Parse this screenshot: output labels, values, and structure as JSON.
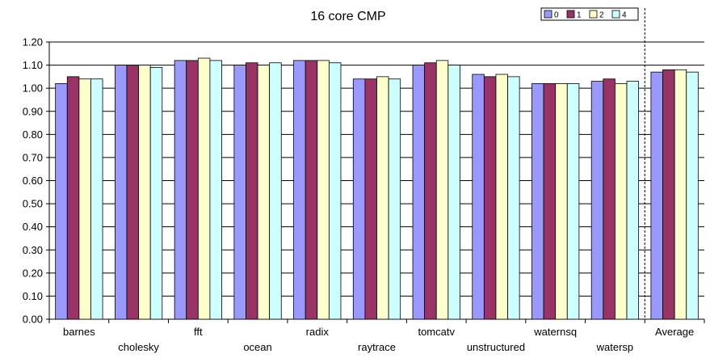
{
  "chart_data": {
    "type": "bar",
    "title": "16 core CMP",
    "xlabel": "",
    "ylabel": "",
    "ylim": [
      0,
      1.2
    ],
    "ytick_labels": [
      "0.00",
      "0.10",
      "0.20",
      "0.30",
      "0.40",
      "0.50",
      "0.60",
      "0.70",
      "0.80",
      "0.90",
      "1.00",
      "1.10",
      "1.20"
    ],
    "categories": [
      "barnes",
      "cholesky",
      "fft",
      "ocean",
      "radix",
      "raytrace",
      "tomcatv",
      "unstructured",
      "waternsq",
      "watersp",
      "Average"
    ],
    "series": [
      {
        "name": "0",
        "color": "#9999ff",
        "values": [
          1.02,
          1.1,
          1.12,
          1.1,
          1.12,
          1.04,
          1.1,
          1.06,
          1.02,
          1.03,
          1.07
        ]
      },
      {
        "name": "1",
        "color": "#993366",
        "values": [
          1.05,
          1.1,
          1.12,
          1.11,
          1.12,
          1.04,
          1.11,
          1.05,
          1.02,
          1.04,
          1.08
        ]
      },
      {
        "name": "2",
        "color": "#ffffcc",
        "values": [
          1.04,
          1.1,
          1.13,
          1.1,
          1.12,
          1.05,
          1.12,
          1.06,
          1.02,
          1.02,
          1.08
        ]
      },
      {
        "name": "4",
        "color": "#ccffff",
        "values": [
          1.04,
          1.09,
          1.12,
          1.11,
          1.11,
          1.04,
          1.1,
          1.05,
          1.02,
          1.03,
          1.07
        ]
      }
    ],
    "grid": true,
    "legend_position": "top-right",
    "average_separator": "dashed"
  }
}
